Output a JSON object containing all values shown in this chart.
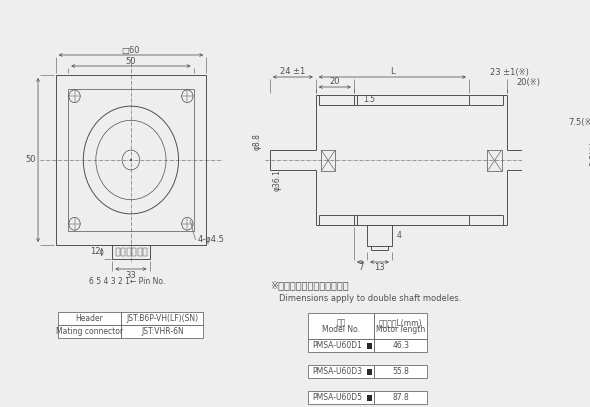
{
  "bg_color": "#eeeeee",
  "line_color": "#505050",
  "lw": 0.7,
  "thin_lw": 0.5,
  "dim_font_size": 6.0,
  "small_font_size": 5.5,
  "note_ja": "※両軸タイプのみの寸法です",
  "note_en": "Dimensions apply to double shaft modeles.",
  "connector_table_rows": [
    [
      "Header",
      "JST:B6P-VH(LF)(SN)"
    ],
    [
      "Mating connector",
      "JST:VHR-6N"
    ]
  ],
  "model_table_rows": [
    [
      "PMSA-U60D1",
      "46.3"
    ],
    [
      "PMSA-U60D3",
      "55.8"
    ],
    [
      "PMSA-U60D5",
      "87.8"
    ]
  ]
}
